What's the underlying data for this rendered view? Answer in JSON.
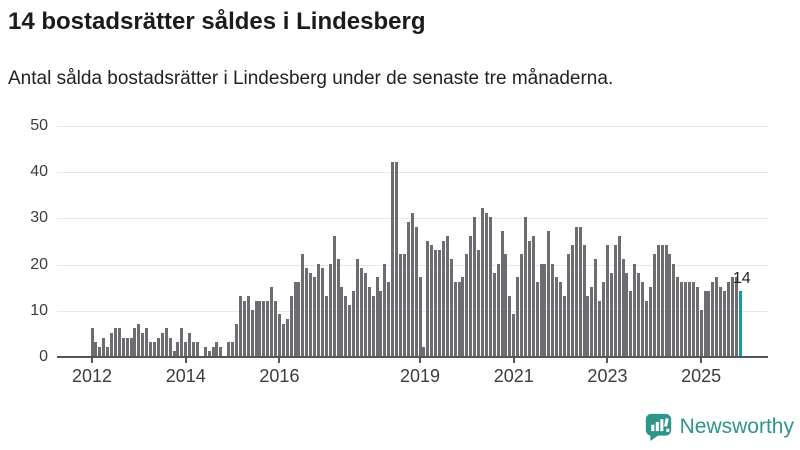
{
  "header": {
    "title": "14 bostadsrätter såldes i Lindesberg",
    "subtitle": "Antal sålda bostadsrätter i Lindesberg under de senaste tre månaderna."
  },
  "chart_data": {
    "type": "bar",
    "title": "14 bostadsrätter såldes i Lindesberg",
    "ylabel": "",
    "xlabel": "",
    "start_month": "2012-01",
    "end_month": "2025-11",
    "ylim": [
      0,
      50
    ],
    "yticks": [
      0,
      10,
      20,
      30,
      40,
      50
    ],
    "xtick_labels": [
      "2012",
      "2014",
      "2016",
      "2019",
      "2021",
      "2023",
      "2025"
    ],
    "xtick_month_indices": [
      0,
      24,
      48,
      84,
      108,
      132,
      156
    ],
    "grid": true,
    "legend_position": "none",
    "bar_color": "#6d6d71",
    "highlight_color": "#18999b",
    "highlight_index": 166,
    "annotation": {
      "text": "14",
      "index": 166
    },
    "values": [
      6,
      3,
      2,
      4,
      2,
      5,
      6,
      6,
      4,
      4,
      4,
      6,
      7,
      5,
      6,
      3,
      3,
      4,
      5,
      6,
      4,
      1,
      3,
      6,
      3,
      5,
      3,
      3,
      0,
      2,
      1,
      2,
      3,
      2,
      0,
      3,
      3,
      7,
      13,
      12,
      13,
      10,
      12,
      12,
      12,
      12,
      15,
      12,
      9,
      7,
      8,
      13,
      16,
      16,
      22,
      19,
      18,
      17,
      20,
      19,
      13,
      20,
      26,
      21,
      15,
      13,
      11,
      14,
      21,
      19,
      18,
      15,
      13,
      17,
      14,
      20,
      16,
      42,
      42,
      22,
      22,
      29,
      31,
      28,
      17,
      2,
      25,
      24,
      23,
      23,
      25,
      26,
      21,
      16,
      16,
      17,
      22,
      26,
      30,
      23,
      32,
      31,
      30,
      18,
      20,
      27,
      22,
      13,
      9,
      17,
      22,
      30,
      25,
      26,
      16,
      20,
      20,
      27,
      20,
      17,
      16,
      13,
      22,
      24,
      28,
      28,
      24,
      13,
      15,
      21,
      12,
      16,
      24,
      18,
      24,
      26,
      21,
      18,
      14,
      20,
      18,
      16,
      12,
      15,
      22,
      24,
      24,
      24,
      22,
      20,
      17,
      16,
      16,
      16,
      16,
      15,
      10,
      14,
      14,
      16,
      17,
      15,
      14,
      16,
      17,
      17,
      14
    ]
  },
  "footer": {
    "brand": "Newsworthy",
    "logo_icon": "bar-chart-speech-bubble-icon",
    "brand_color": "#2f9489"
  }
}
